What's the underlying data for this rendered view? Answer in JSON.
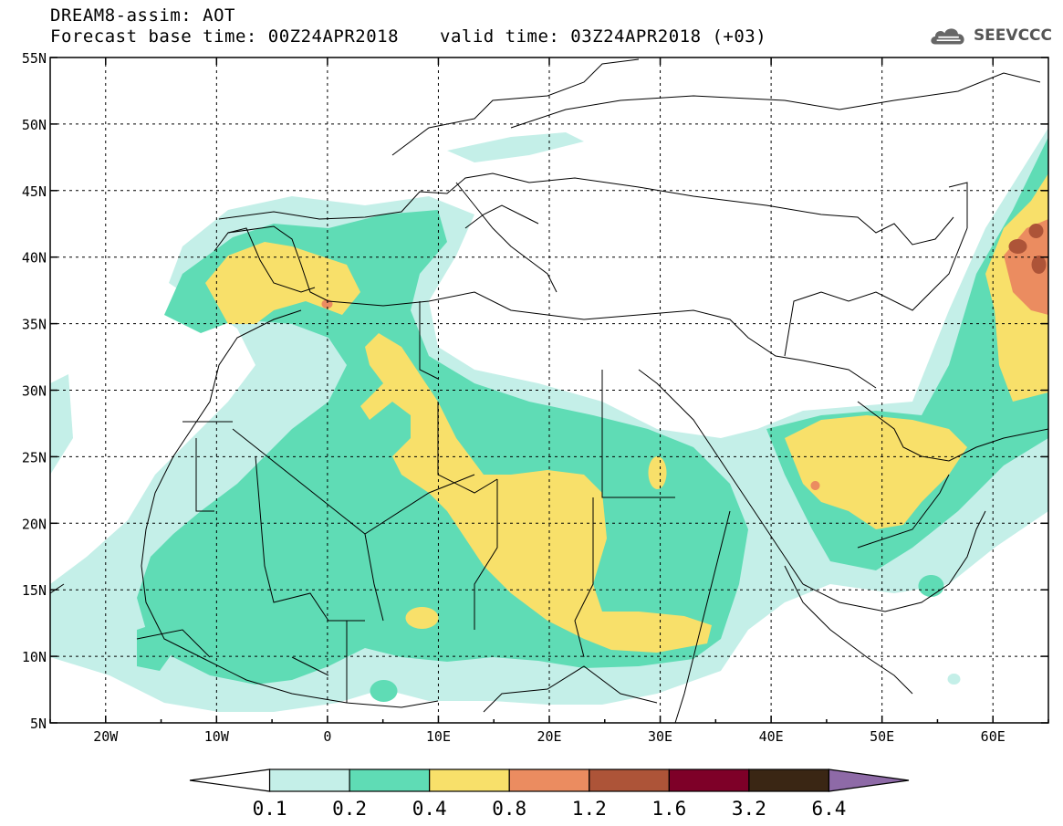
{
  "header": {
    "title_line1": "DREAM8-assim: AOT",
    "title_line2": "Forecast base time: 00Z24APR2018",
    "valid_time": "valid time: 03Z24APR2018 (+03)",
    "logo_text": "SEEVCCC"
  },
  "map": {
    "lat_labels": [
      "55N",
      "50N",
      "45N",
      "40N",
      "35N",
      "30N",
      "25N",
      "20N",
      "15N",
      "10N",
      "5N"
    ],
    "lon_labels": [
      "20W",
      "10W",
      "0",
      "10E",
      "20E",
      "30E",
      "40E",
      "50E",
      "60E"
    ]
  },
  "legend": {
    "colors": [
      "#ffffff",
      "#c4efe8",
      "#5fdcb5",
      "#f8e06a",
      "#eb8c60",
      "#ad5438",
      "#7e0028",
      "#3a2614",
      "#8e6aa7"
    ],
    "labels": [
      "0.1",
      "0.2",
      "0.4",
      "0.8",
      "1.2",
      "1.6",
      "3.2",
      "6.4"
    ]
  }
}
